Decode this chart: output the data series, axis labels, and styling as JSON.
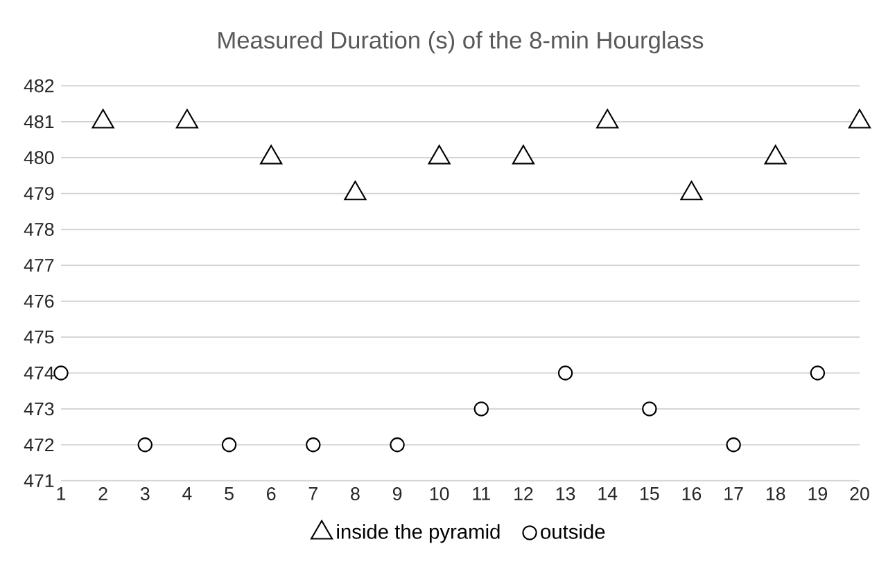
{
  "chart_data": {
    "type": "scatter",
    "title": "Measured Duration (s) of the 8-min Hourglass",
    "series": [
      {
        "name": "inside the pyramid",
        "color": "#000000",
        "marker": "triangle",
        "x": [
          2,
          4,
          6,
          8,
          10,
          12,
          14,
          16,
          18,
          20
        ],
        "values": [
          481,
          481,
          480,
          479,
          480,
          480,
          481,
          479,
          480,
          481
        ]
      },
      {
        "name": "outside",
        "color": "#000000",
        "marker": "circle",
        "x": [
          1,
          3,
          5,
          7,
          9,
          11,
          13,
          15,
          17,
          19
        ],
        "values": [
          474,
          472,
          472,
          472,
          472,
          473,
          474,
          473,
          472,
          474
        ]
      }
    ],
    "xlim": [
      1,
      20
    ],
    "xticks": [
      1,
      2,
      3,
      4,
      5,
      6,
      7,
      8,
      9,
      10,
      11,
      12,
      13,
      14,
      15,
      16,
      17,
      18,
      19,
      20
    ],
    "ylim": [
      471,
      482
    ],
    "yticks": [
      471,
      472,
      473,
      474,
      475,
      476,
      477,
      478,
      479,
      480,
      481,
      482
    ],
    "grid": "y",
    "legend": "bottom"
  }
}
